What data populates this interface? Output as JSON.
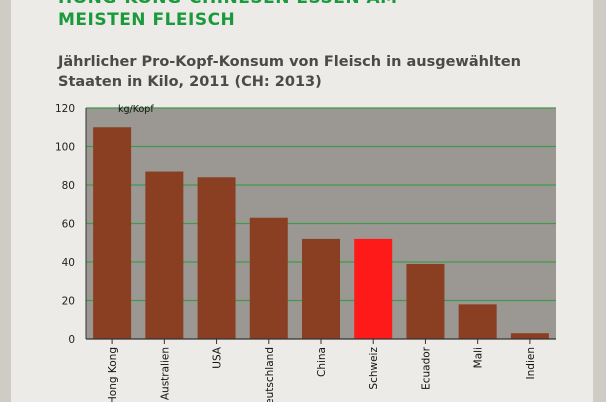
{
  "headline": {
    "line1": "HONG-KONG-CHINESEN ESSEN AM",
    "line2": "MEISTEN FLEISCH"
  },
  "subtitle": {
    "line1": "Jährlicher Pro-Kopf-Konsum von Fleisch in ausgewählten",
    "line2": "Staaten in Kilo, 2011 (CH: 2013)"
  },
  "chart_data": {
    "type": "bar",
    "unit_label": "kg/Kopf",
    "categories": [
      "Hong Kong",
      "Australien",
      "USA",
      "Deutschland",
      "China",
      "Schweiz",
      "Ecuador",
      "Mali",
      "Indien"
    ],
    "values": [
      110,
      87,
      84,
      63,
      52,
      52,
      39,
      18,
      3
    ],
    "highlight": "Schweiz",
    "ylim": [
      0,
      120
    ],
    "yticks": [
      0,
      20,
      40,
      60,
      80,
      100,
      120
    ],
    "grid": true,
    "colors": {
      "bar": "#8a3f22",
      "highlight": "#ff1a1a",
      "plot_background": "#9b9893",
      "grid": "#3f9a4a"
    }
  }
}
